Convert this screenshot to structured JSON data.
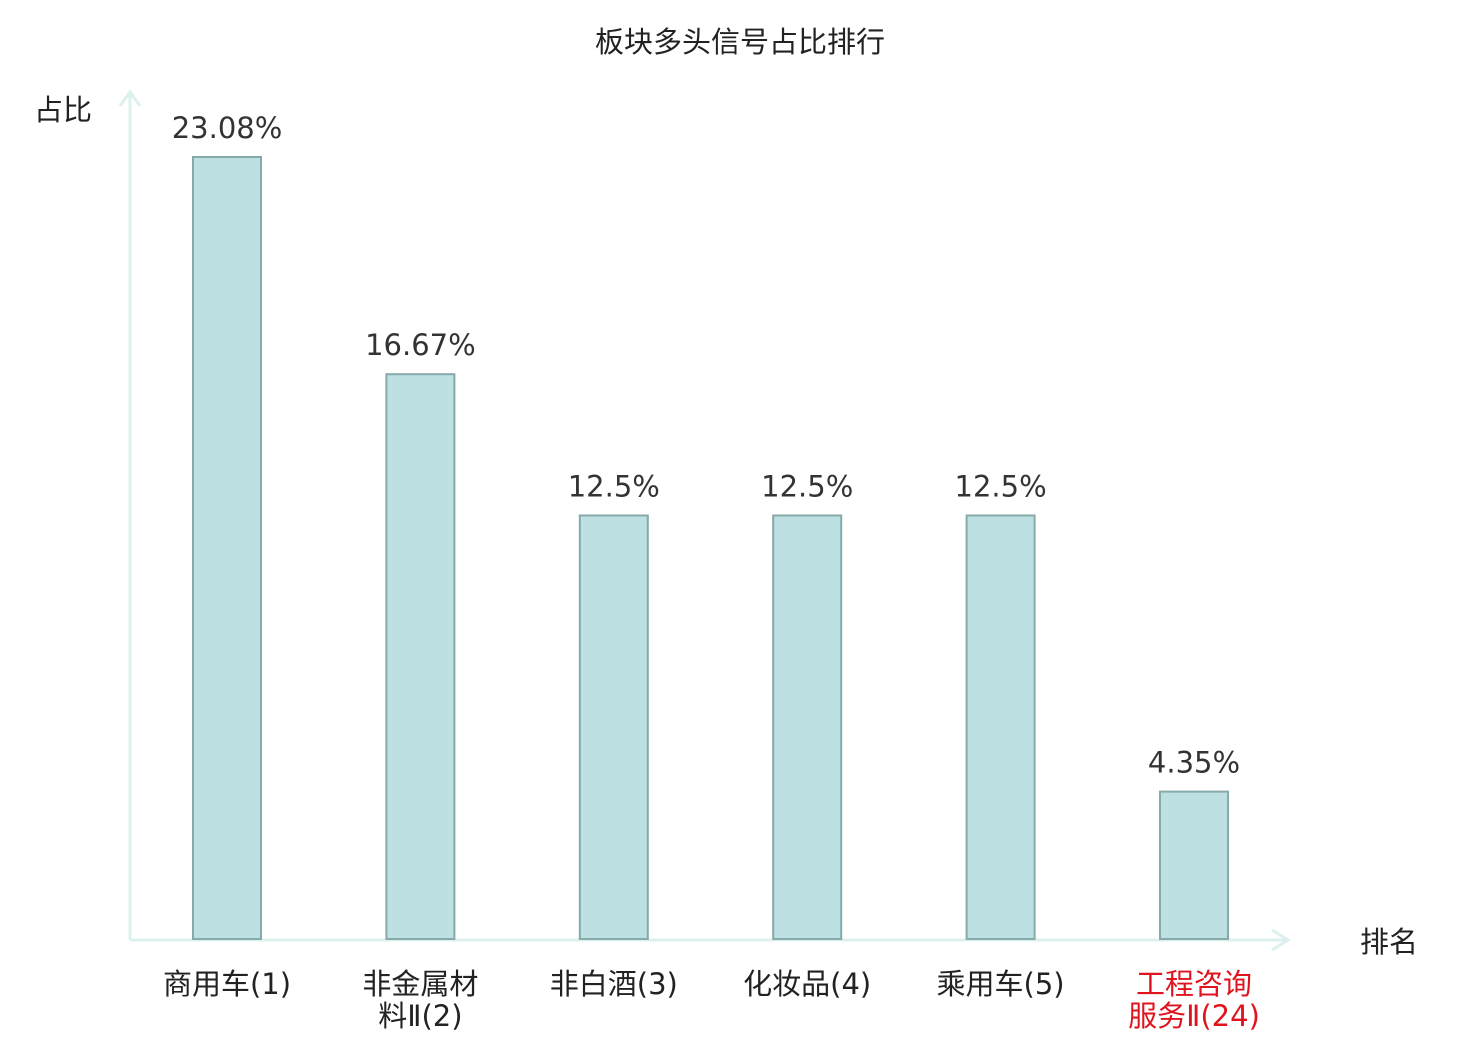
{
  "chart_data": {
    "type": "bar",
    "title": "板块多头信号占比排行",
    "ylabel": "占比",
    "xlabel": "排名",
    "categories": [
      "商用车(1)",
      "非金属材料Ⅱ(2)",
      "非白酒(3)",
      "化妆品(4)",
      "乘用车(5)",
      "工程咨询服务Ⅱ(24)"
    ],
    "category_lines": [
      [
        "商用车(1)"
      ],
      [
        "非金属材",
        "料Ⅱ(2)"
      ],
      [
        "非白酒(3)"
      ],
      [
        "化妆品(4)"
      ],
      [
        "乘用车(5)"
      ],
      [
        "工程咨询",
        "服务Ⅱ(24)"
      ]
    ],
    "values": [
      23.08,
      16.67,
      12.5,
      12.5,
      12.5,
      4.35
    ],
    "value_labels": [
      "23.08%",
      "16.67%",
      "12.5%",
      "12.5%",
      "12.5%",
      "4.35%"
    ],
    "highlight_index": 5,
    "ylim": [
      0,
      25
    ],
    "grid": false,
    "colors": {
      "bar_fill": "#bde0e3",
      "bar_stroke": "#86a9aa",
      "axis": "#dcf0ee",
      "highlight_text": "#e0141e"
    }
  }
}
